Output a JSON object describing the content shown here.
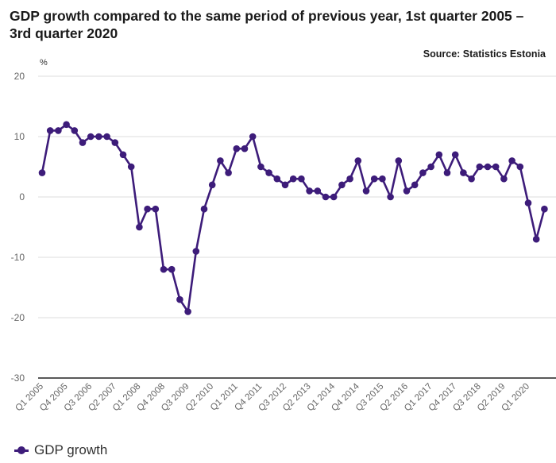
{
  "chart_data": {
    "type": "line",
    "title": "GDP growth compared to the same period of previous year, 1st quarter 2005 – 3rd quarter 2020",
    "source": "Source: Statistics Estonia",
    "ylabel": "%",
    "ylim": [
      -30,
      20
    ],
    "yticks": [
      "20",
      "10",
      "0",
      "-10",
      "-20",
      "-30"
    ],
    "grid": true,
    "legend_position": "bottom-left",
    "x": [
      "Q1 2005",
      "Q2 2005",
      "Q3 2005",
      "Q4 2005",
      "Q1 2006",
      "Q2 2006",
      "Q3 2006",
      "Q4 2006",
      "Q1 2007",
      "Q2 2007",
      "Q3 2007",
      "Q4 2007",
      "Q1 2008",
      "Q2 2008",
      "Q3 2008",
      "Q4 2008",
      "Q1 2009",
      "Q2 2009",
      "Q3 2009",
      "Q4 2009",
      "Q1 2010",
      "Q2 2010",
      "Q3 2010",
      "Q4 2010",
      "Q1 2011",
      "Q2 2011",
      "Q3 2011",
      "Q4 2011",
      "Q1 2012",
      "Q2 2012",
      "Q3 2012",
      "Q4 2012",
      "Q1 2013",
      "Q2 2013",
      "Q3 2013",
      "Q4 2013",
      "Q1 2014",
      "Q2 2014",
      "Q3 2014",
      "Q4 2014",
      "Q1 2015",
      "Q2 2015",
      "Q3 2015",
      "Q4 2015",
      "Q1 2016",
      "Q2 2016",
      "Q3 2016",
      "Q4 2016",
      "Q1 2017",
      "Q2 2017",
      "Q3 2017",
      "Q4 2017",
      "Q1 2018",
      "Q2 2018",
      "Q3 2018",
      "Q4 2018",
      "Q1 2019",
      "Q2 2019",
      "Q3 2019",
      "Q4 2019",
      "Q1 2020",
      "Q2 2020",
      "Q3 2020"
    ],
    "xtick_labels": [
      "Q1 2005",
      "Q4 2005",
      "Q3 2006",
      "Q2 2007",
      "Q1 2008",
      "Q4 2008",
      "Q3 2009",
      "Q2 2010",
      "Q1 2011",
      "Q4 2011",
      "Q3 2012",
      "Q2 2013",
      "Q1 2014",
      "Q4 2014",
      "Q3 2015",
      "Q2 2016",
      "Q1 2017",
      "Q4 2017",
      "Q3 2018",
      "Q2 2019",
      "Q1 2020"
    ],
    "series": [
      {
        "name": "GDP growth",
        "color": "#3d1c7a",
        "values": [
          4,
          11,
          11,
          12,
          11,
          9,
          10,
          10,
          10,
          9,
          7,
          5,
          -5,
          -2,
          -2,
          -12,
          -12,
          -17,
          -19,
          -9,
          -2,
          2,
          6,
          4,
          8,
          8,
          10,
          5,
          4,
          3,
          2,
          3,
          3,
          1,
          1,
          0,
          0,
          2,
          3,
          6,
          1,
          3,
          3,
          0,
          6,
          1,
          2,
          4,
          5,
          7,
          4,
          7,
          4,
          3,
          5,
          5,
          5,
          3,
          6,
          5,
          -1,
          -7,
          -2
        ]
      }
    ]
  }
}
